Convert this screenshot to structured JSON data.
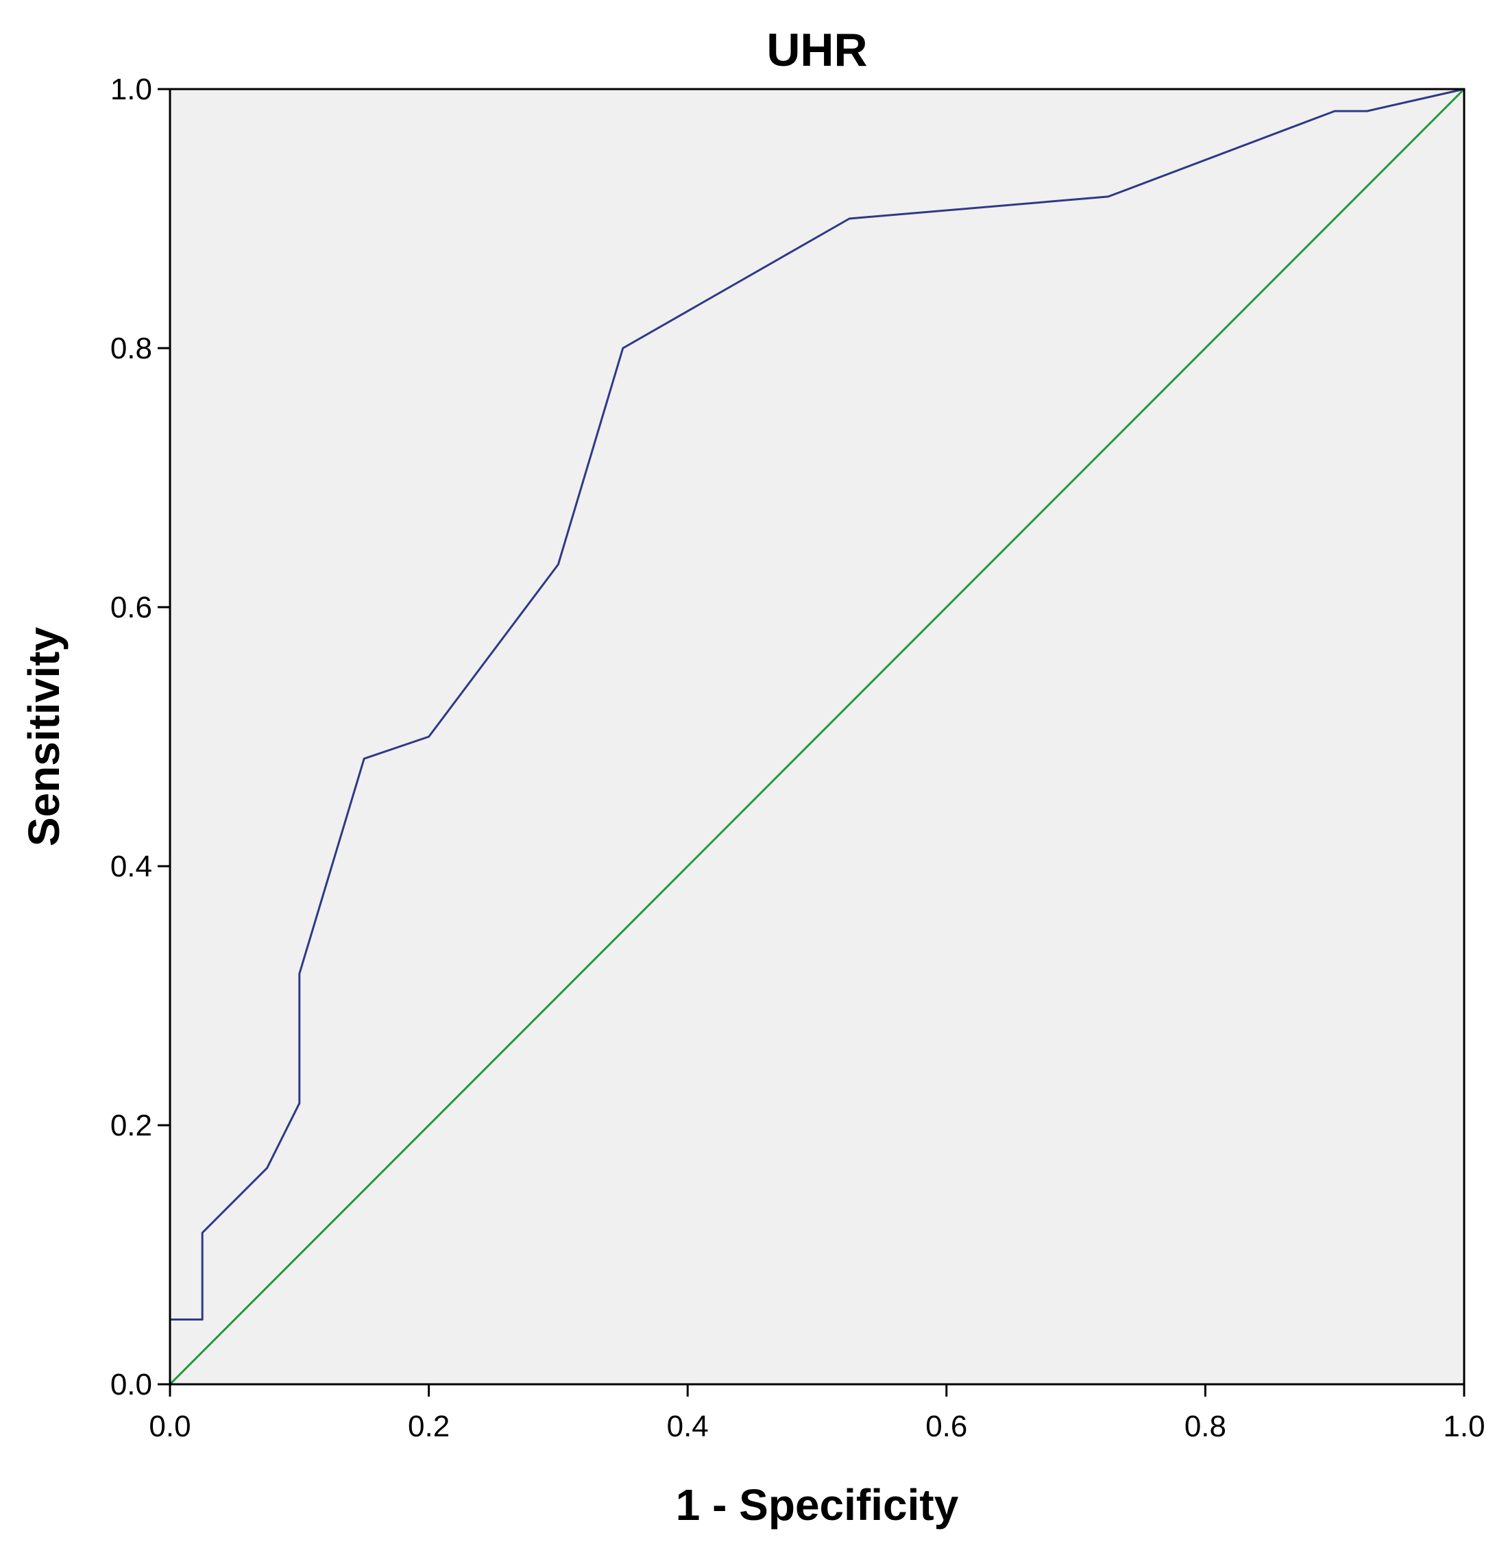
{
  "chart_data": {
    "type": "line",
    "title": "UHR",
    "xlabel": "1 - Specificity",
    "ylabel": "Sensitivity",
    "xlim": [
      0,
      1
    ],
    "ylim": [
      0,
      1
    ],
    "x_ticks": [
      "0.0",
      "0.2",
      "0.4",
      "0.6",
      "0.8",
      "1.0"
    ],
    "y_ticks": [
      "0.0",
      "0.2",
      "0.4",
      "0.6",
      "0.8",
      "1.0"
    ],
    "grid": false,
    "legend": "none",
    "background_color": "#f0f0f0",
    "series": [
      {
        "color": "#2e3a87",
        "x": [
          0.0,
          0.0,
          0.025,
          0.025,
          0.075,
          0.1,
          0.1,
          0.15,
          0.2,
          0.3,
          0.35,
          0.525,
          0.725,
          0.9,
          0.925,
          1.0
        ],
        "y": [
          0.0,
          0.05,
          0.05,
          0.117,
          0.167,
          0.217,
          0.317,
          0.483,
          0.5,
          0.633,
          0.8,
          0.9,
          0.917,
          0.983,
          0.983,
          1.0
        ]
      },
      {
        "color": "#1f9a3c",
        "x": [
          0.0,
          1.0
        ],
        "y": [
          0.0,
          1.0
        ]
      }
    ]
  }
}
